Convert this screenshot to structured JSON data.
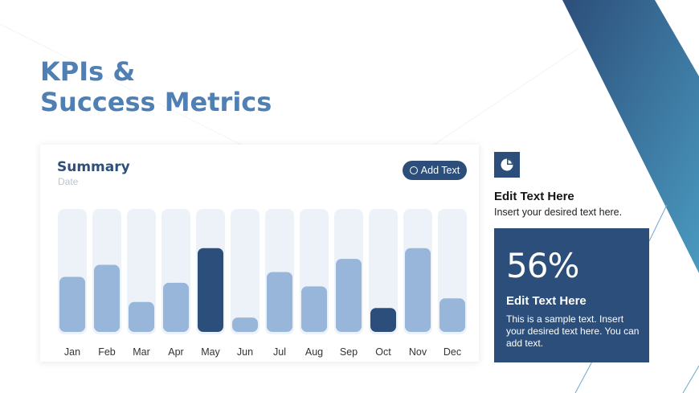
{
  "slide": {
    "title_line1": "KPIs &",
    "title_line2": "Success Metrics"
  },
  "card": {
    "title": "Summary",
    "subtitle": "Date",
    "button_label": "Add Text"
  },
  "side": {
    "icon": "pie-chart-icon",
    "heading": "Edit Text Here",
    "text": "Insert your desired text here.",
    "kpi_value": "56%",
    "kpi_heading": "Edit Text Here",
    "kpi_text": "This is a sample text. Insert your desired text here. You can add text."
  },
  "colors": {
    "primary": "#2c4e7a",
    "bar_light": "#98b6da",
    "track": "#edf2f9",
    "title": "#4f7fb3",
    "band_gradient": [
      "#2c4e7a",
      "#4a9ac0"
    ]
  },
  "chart_data": {
    "type": "bar",
    "categories": [
      "Jan",
      "Feb",
      "Mar",
      "Apr",
      "May",
      "Jun",
      "Jul",
      "Aug",
      "Sep",
      "Oct",
      "Nov",
      "Dec"
    ],
    "values": [
      46,
      56,
      25,
      41,
      70,
      12,
      50,
      38,
      61,
      20,
      70,
      28
    ],
    "highlighted": [
      "May",
      "Oct"
    ],
    "ylim": [
      0,
      100
    ],
    "grid": false,
    "legend": "none"
  }
}
